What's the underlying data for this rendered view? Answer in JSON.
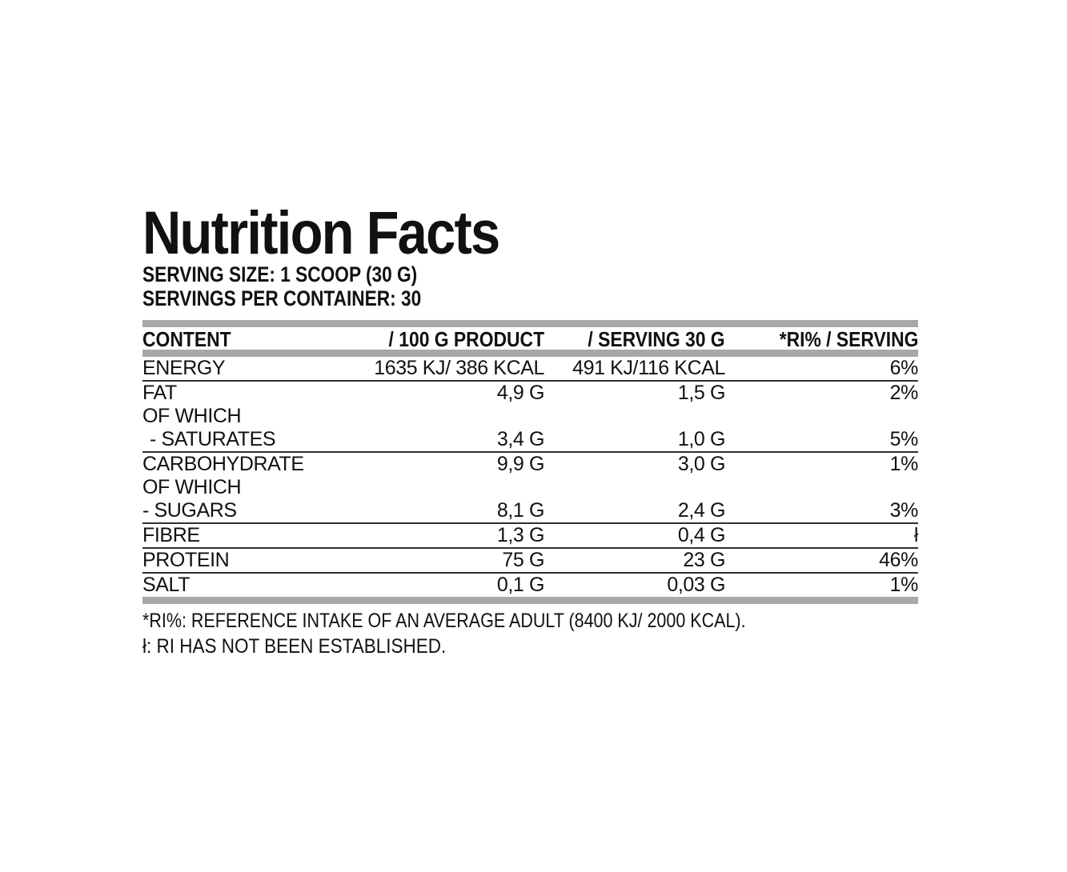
{
  "title": "Nutrition Facts",
  "serving_size": "SERVING SIZE: 1 SCOOP (30 G)",
  "servings_per_container": "SERVINGS PER CONTAINER: 30",
  "table": {
    "headers": [
      "CONTENT",
      "/ 100 G PRODUCT",
      "/ SERVING 30 G",
      "*RI% / SERVING"
    ],
    "rows": [
      {
        "name": "ENERGY",
        "per100": "1635 KJ/ 386 KCAL",
        "serving": "491 KJ/116 KCAL",
        "ri": "6%"
      },
      {
        "name": "FAT",
        "per100": "4,9 G",
        "serving": "1,5 G",
        "ri": "2%"
      },
      {
        "name": "OF WHICH",
        "per100": "",
        "serving": "",
        "ri": ""
      },
      {
        "name": "- SATURATES",
        "per100": "3,4 G",
        "serving": "1,0 G",
        "ri": "5%"
      },
      {
        "name": "CARBOHYDRATE",
        "per100": "9,9 G",
        "serving": "3,0 G",
        "ri": "1%"
      },
      {
        "name": "OF WHICH",
        "per100": "",
        "serving": "",
        "ri": ""
      },
      {
        "name": "- SUGARS",
        "per100": "8,1 G",
        "serving": "2,4 G",
        "ri": "3%"
      },
      {
        "name": "FIBRE",
        "per100": "1,3 G",
        "serving": "0,4 G",
        "ri": "ł"
      },
      {
        "name": "PROTEIN",
        "per100": "75 G",
        "serving": "23 G",
        "ri": "46%"
      },
      {
        "name": "SALT",
        "per100": "0,1 G",
        "serving": "0,03 G",
        "ri": "1%"
      }
    ]
  },
  "footnotes": {
    "ri_definition": "*RI%: REFERENCE INTAKE OF AN AVERAGE ADULT (8400 KJ/ 2000 KCAL).",
    "not_established": "ł: RI HAS NOT BEEN ESTABLISHED."
  },
  "colors": {
    "bar_gray": "#a8a8a8",
    "rule": "#2f2f2f",
    "text": "#111111",
    "background": "#ffffff"
  }
}
